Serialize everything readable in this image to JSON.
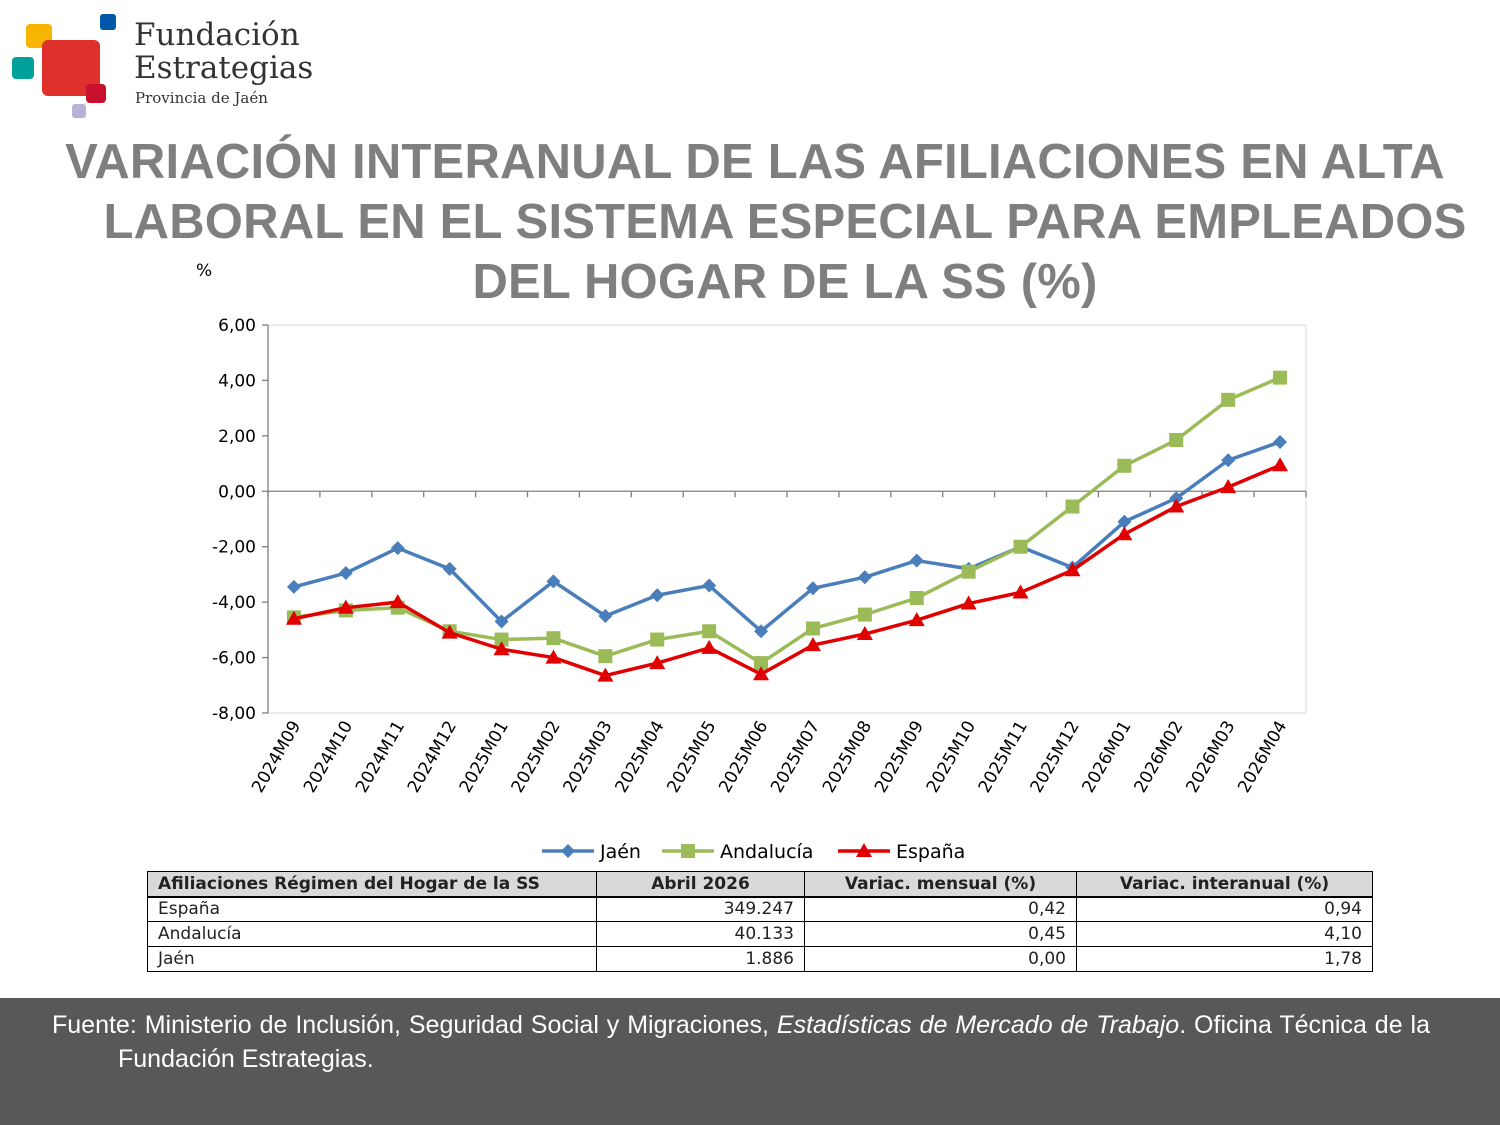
{
  "logo": {
    "line1": "Fundación",
    "line2": "Estrategias",
    "line3": "Provincia de Jaén",
    "colors": [
      "#f7b500",
      "#e0302c",
      "#00a19a",
      "#0057a8",
      "#b7b3d6",
      "#c8102e"
    ]
  },
  "title": {
    "line1": "VARIACIÓN INTERANUAL DE LAS AFILIACIONES EN ALTA",
    "line2": "LABORAL EN EL SISTEMA ESPECIAL PARA EMPLEADOS",
    "line3": "DEL HOGAR DE LA SS (%)"
  },
  "chart_data": {
    "type": "line",
    "unit": "%",
    "categories": [
      "2024M09",
      "2024M10",
      "2024M11",
      "2024M12",
      "2025M01",
      "2025M02",
      "2025M03",
      "2025M04",
      "2025M05",
      "2025M06",
      "2025M07",
      "2025M08",
      "2025M09",
      "2025M10",
      "2025M11",
      "2025M12",
      "2026M01",
      "2026M02",
      "2026M03",
      "2026M04"
    ],
    "ylim": [
      -8,
      6
    ],
    "yticks": [
      "6,00",
      "4,00",
      "2,00",
      "0,00",
      "-2,00",
      "-4,00",
      "-6,00",
      "-8,00"
    ],
    "ytick_values": [
      6,
      4,
      2,
      0,
      -2,
      -4,
      -6,
      -8
    ],
    "legend_position": "bottom",
    "grid": false,
    "series": [
      {
        "name": "Jaén",
        "color": "#4a7ebb",
        "marker": "diamond",
        "values": [
          -3.45,
          -2.95,
          -2.05,
          -2.8,
          -4.7,
          -3.25,
          -4.5,
          -3.75,
          -3.4,
          -5.05,
          -3.5,
          -3.1,
          -2.5,
          -2.8,
          -2.0,
          -2.75,
          -1.1,
          -0.25,
          1.12,
          1.78
        ]
      },
      {
        "name": "Andalucía",
        "color": "#9bbb59",
        "marker": "square",
        "values": [
          -4.55,
          -4.3,
          -4.2,
          -5.05,
          -5.35,
          -5.3,
          -5.95,
          -5.35,
          -5.05,
          -6.2,
          -4.95,
          -4.45,
          -3.85,
          -2.9,
          -2.0,
          -0.55,
          0.92,
          1.85,
          3.3,
          4.1
        ]
      },
      {
        "name": "España",
        "color": "#e00000",
        "marker": "triangle",
        "values": [
          -4.6,
          -4.2,
          -4.0,
          -5.1,
          -5.7,
          -6.0,
          -6.65,
          -6.2,
          -5.65,
          -6.6,
          -5.55,
          -5.15,
          -4.65,
          -4.05,
          -3.65,
          -2.85,
          -1.55,
          -0.55,
          0.15,
          0.94
        ]
      }
    ]
  },
  "table": {
    "headers": [
      "Afiliaciones Régimen del Hogar de la SS",
      "Abril 2026",
      "Variac. mensual (%)",
      "Variac. interanual (%)"
    ],
    "rows": [
      [
        "España",
        "349.247",
        "0,42",
        "0,94"
      ],
      [
        "Andalucía",
        "40.133",
        "0,45",
        "4,10"
      ],
      [
        "Jaén",
        "1.886",
        "0,00",
        "1,78"
      ]
    ]
  },
  "footer": {
    "prefix": "Fuente: Ministerio de Inclusión, Seguridad Social y Migraciones, ",
    "italic": "Estadísticas de Mercado de Trabajo",
    "suffix": ". Oficina Técnica de la Fundación Estrategias."
  }
}
